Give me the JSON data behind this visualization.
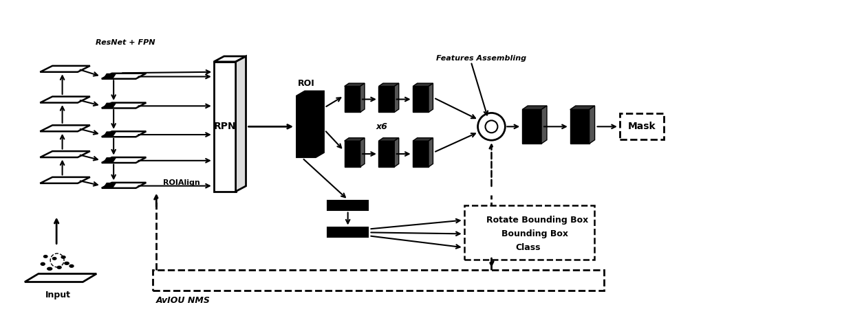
{
  "title": "",
  "background_color": "#ffffff",
  "fig_width": 12.4,
  "fig_height": 4.79,
  "labels": {
    "input": "Input",
    "resnet_fpn": "ResNet + FPN",
    "rpn": "RPN",
    "roi": "ROI",
    "roialign": "ROIAlign",
    "x6": "x6",
    "features_assembling": "Features Assembling",
    "mask": "Mask",
    "rotate_bb": "Rotate Bounding Box",
    "bb": "Bounding Box",
    "class": "Class",
    "aviou_nms": "AvIOU NMS"
  },
  "colors": {
    "black": "#000000",
    "white": "#ffffff",
    "gray": "#555555",
    "light_gray": "#dddddd",
    "dark": "#1a1a1a"
  }
}
